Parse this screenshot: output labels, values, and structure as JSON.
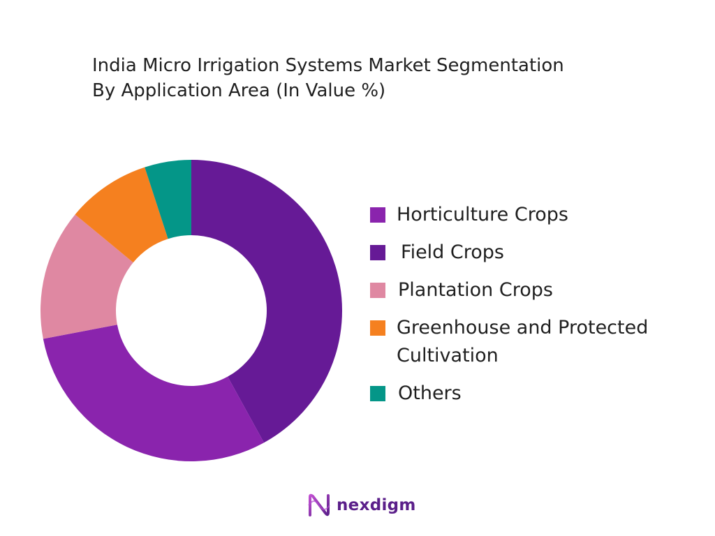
{
  "title": {
    "line1": "India Micro Irrigation Systems Market Segmentation",
    "line2": "By Application Area (In Value %)"
  },
  "brand": {
    "name": "nexdigm",
    "icon": "nexdigm-logo-icon"
  },
  "chart_data": {
    "type": "pie",
    "donut": true,
    "start_angle_deg": 0,
    "direction": "clockwise",
    "legend_position": "right",
    "title": "India Micro Irrigation Systems Market Segmentation By Application Area (In Value %)",
    "categories": [
      "Horticulture Crops",
      "Field Crops",
      "Plantation Crops",
      "Greenhouse and Protected Cultivation",
      "Others"
    ],
    "values": [
      30,
      42,
      14,
      9,
      5
    ],
    "colors": [
      "#8a24ad",
      "#661a96",
      "#df88a2",
      "#f5801f",
      "#049688"
    ],
    "slice_order": [
      1,
      0,
      2,
      3,
      4
    ]
  },
  "legend": {
    "items": [
      {
        "label": "Horticulture Crops",
        "color": "#8a24ad"
      },
      {
        "label": "Field Crops",
        "color": "#661a96"
      },
      {
        "label": "Plantation Crops",
        "color": "#df88a2"
      },
      {
        "label": "Greenhouse and Protected Cultivation",
        "color": "#f5801f"
      },
      {
        "label": "Others",
        "color": "#049688"
      }
    ]
  }
}
